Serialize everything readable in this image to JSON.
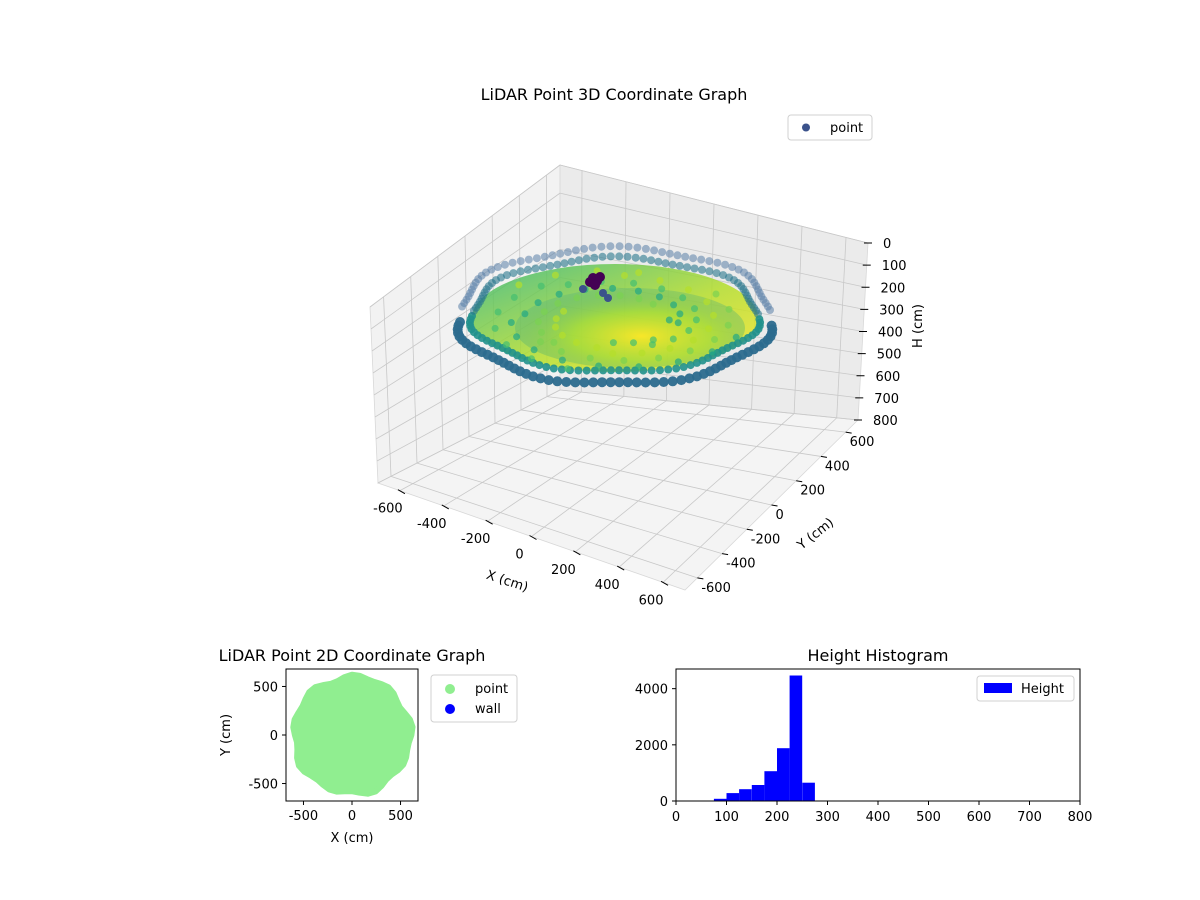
{
  "chart_data": [
    {
      "type": "scatter3d",
      "title": "LiDAR Point 3D Coordinate Graph",
      "xlabel": "X (cm)",
      "ylabel": "Y (cm)",
      "zlabel": "H (cm)",
      "xlim": [
        -700,
        700
      ],
      "ylim": [
        -700,
        700
      ],
      "zlim": [
        0,
        800
      ],
      "z_inverted": true,
      "x_ticks": [
        -600,
        -400,
        -200,
        0,
        200,
        400,
        600
      ],
      "y_ticks": [
        -600,
        -400,
        -200,
        0,
        200,
        400,
        600
      ],
      "z_ticks": [
        0,
        100,
        200,
        300,
        400,
        500,
        600,
        700,
        800
      ],
      "colormap": "viridis",
      "grid": true,
      "legend": {
        "placement": "top-right",
        "entries": [
          {
            "name": "point",
            "color": "#3b528b"
          }
        ]
      },
      "series": [
        {
          "name": "point",
          "description": "bowl-shaped point cloud, rim radius ~600, heights ~80-250",
          "rim_radius": 600,
          "rim_height_range": [
            80,
            250
          ],
          "cluster": {
            "x": 150,
            "y": 350,
            "h": 120,
            "color": "#440154"
          }
        }
      ]
    },
    {
      "type": "scatter",
      "title": "LiDAR Point 2D Coordinate Graph",
      "xlabel": "X (cm)",
      "ylabel": "Y (cm)",
      "xlim": [
        -680,
        680
      ],
      "ylim": [
        -680,
        680
      ],
      "x_ticks": [
        -500,
        0,
        500
      ],
      "y_ticks": [
        -500,
        0,
        500
      ],
      "legend": {
        "placement": "outside-right",
        "entries": [
          {
            "name": "point",
            "color": "#90ee90"
          },
          {
            "name": "wall",
            "color": "#0000ff"
          }
        ]
      },
      "series": [
        {
          "name": "point",
          "color": "#90ee90",
          "shape": "disc",
          "radius_approx": 600
        },
        {
          "name": "wall",
          "color": "#0000ff",
          "values": []
        }
      ]
    },
    {
      "type": "bar",
      "title": "Height Histogram",
      "xlabel": "",
      "ylabel": "",
      "xlim": [
        0,
        800
      ],
      "ylim": [
        0,
        4700
      ],
      "x_ticks": [
        0,
        100,
        200,
        300,
        400,
        500,
        600,
        700,
        800
      ],
      "y_ticks": [
        0,
        2000,
        4000
      ],
      "color": "#0000ff",
      "legend": {
        "placement": "top-right",
        "entries": [
          {
            "name": "Height",
            "color": "#0000ff"
          }
        ]
      },
      "bins": [
        {
          "x0": 75,
          "x1": 100,
          "count": 80
        },
        {
          "x0": 100,
          "x1": 125,
          "count": 280
        },
        {
          "x0": 125,
          "x1": 150,
          "count": 420
        },
        {
          "x0": 150,
          "x1": 175,
          "count": 570
        },
        {
          "x0": 175,
          "x1": 200,
          "count": 1060
        },
        {
          "x0": 200,
          "x1": 225,
          "count": 1880
        },
        {
          "x0": 225,
          "x1": 250,
          "count": 4470
        },
        {
          "x0": 250,
          "x1": 275,
          "count": 650
        }
      ]
    }
  ]
}
